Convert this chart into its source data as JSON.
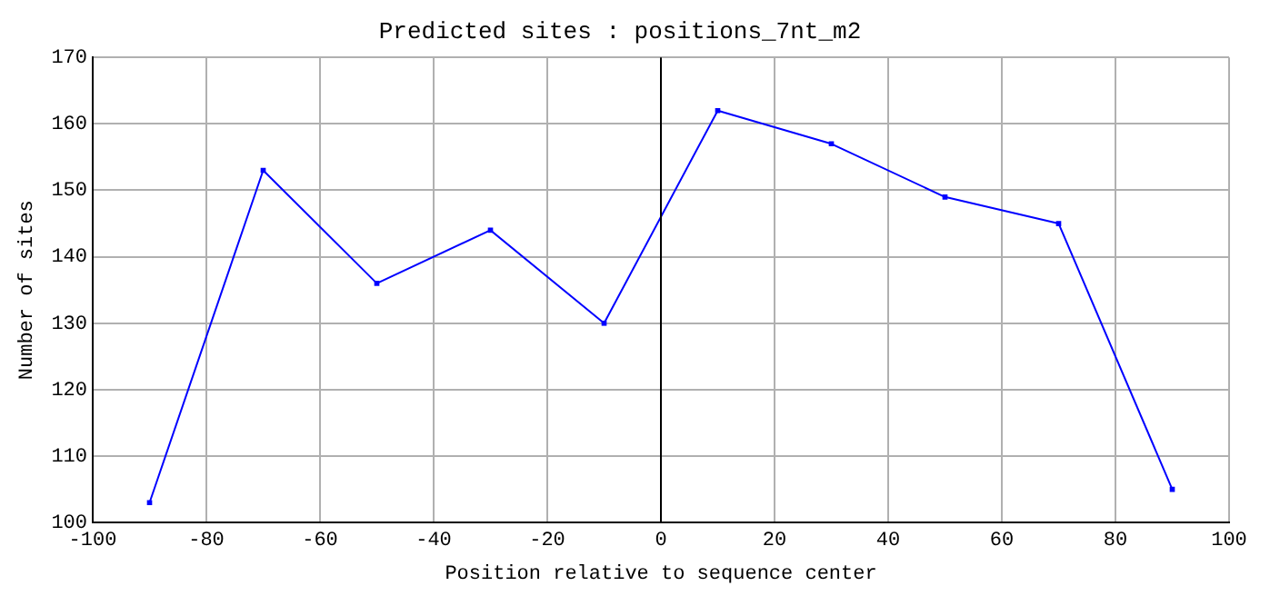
{
  "chart_data": {
    "type": "line",
    "title": "Predicted sites : positions_7nt_m2",
    "xlabel": "Position relative to sequence center",
    "ylabel": "Number of sites",
    "x": [
      -90,
      -70,
      -50,
      -30,
      -10,
      10,
      30,
      50,
      70,
      90
    ],
    "series": [
      {
        "color": "#0000ff",
        "values": [
          103,
          153,
          136,
          144,
          130,
          162,
          157,
          149,
          145,
          105
        ]
      }
    ],
    "xlim": [
      -100,
      100
    ],
    "xticks": [
      -100,
      -80,
      -60,
      -40,
      -20,
      0,
      20,
      40,
      60,
      80,
      100
    ],
    "ylim": [
      100,
      170
    ],
    "yticks": [
      100,
      110,
      120,
      130,
      140,
      150,
      160,
      170
    ],
    "ref_lines": [
      {
        "axis": "x",
        "value": 0,
        "color": "#000000"
      }
    ],
    "grid": true,
    "legend": false,
    "marker": "square",
    "line_style": "solid"
  }
}
